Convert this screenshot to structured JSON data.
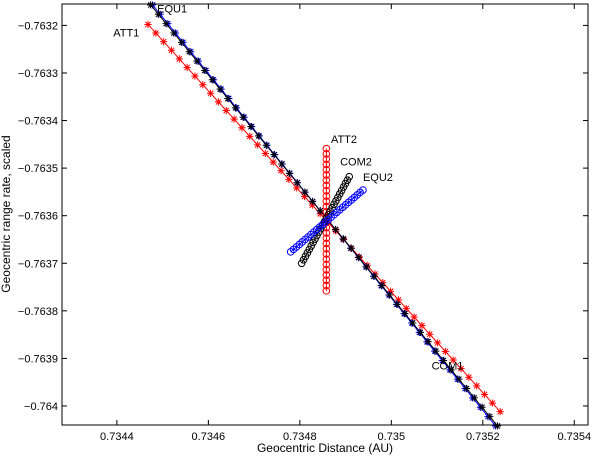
{
  "chart_data": {
    "type": "line",
    "title": "",
    "xlabel": "Geocentric Distance (AU)",
    "ylabel": "Geocentric range rate, scaled",
    "xlim": [
      0.73428,
      0.73543
    ],
    "ylim": [
      -0.76404,
      -0.763155
    ],
    "xticks": [
      0.7344,
      0.7346,
      0.7348,
      0.735,
      0.7352,
      0.7354
    ],
    "xtick_labels": [
      "0.7344",
      "0.7346",
      "0.7348",
      "0.735",
      "0.7352",
      "0.7354"
    ],
    "yticks": [
      -0.7632,
      -0.7633,
      -0.7634,
      -0.7635,
      -0.7636,
      -0.7637,
      -0.7638,
      -0.7639,
      -0.764
    ],
    "ytick_labels": [
      "−0.7632",
      "−0.7633",
      "−0.7634",
      "−0.7635",
      "−0.7636",
      "−0.7637",
      "−0.7638",
      "−0.7639",
      "−0.764"
    ],
    "grid": false,
    "series": [
      {
        "name": "ATT1",
        "color": "#ff0000",
        "marker": "star",
        "count": 46,
        "start": [
          0.734468,
          -0.763198
        ],
        "end": [
          0.735238,
          -0.764012
        ]
      },
      {
        "name": "EQU1",
        "color": "#0000ff",
        "marker": "star",
        "count": 46,
        "start": [
          0.734478,
          -0.763157
        ],
        "end": [
          0.735228,
          -0.764042
        ]
      },
      {
        "name": "COM1",
        "color": "#000000",
        "marker": "star",
        "count": 46,
        "start": [
          0.734474,
          -0.763157
        ],
        "end": [
          0.735232,
          -0.764042
        ]
      },
      {
        "name": "ATT2",
        "color": "#ff0000",
        "marker": "circle",
        "count": 28,
        "start": [
          0.734858,
          -0.763758
        ],
        "end": [
          0.734858,
          -0.763459
        ]
      },
      {
        "name": "COM2",
        "color": "#000000",
        "marker": "circle",
        "count": 26,
        "start": [
          0.734804,
          -0.7637
        ],
        "end": [
          0.734908,
          -0.763518
        ]
      },
      {
        "name": "EQU2",
        "color": "#0000ff",
        "marker": "circle",
        "count": 26,
        "start": [
          0.73478,
          -0.763676
        ],
        "end": [
          0.734938,
          -0.763546
        ]
      }
    ],
    "annotations": [
      {
        "text": "EQU1",
        "x": 0.734488,
        "y": -0.763173
      },
      {
        "text": "ATT1",
        "x": 0.734392,
        "y": -0.763223
      },
      {
        "text": "ATT2",
        "x": 0.734868,
        "y": -0.763447
      },
      {
        "text": "COM2",
        "x": 0.734888,
        "y": -0.763494
      },
      {
        "text": "EQU2",
        "x": 0.734938,
        "y": -0.763527
      },
      {
        "text": "COM1",
        "x": 0.735088,
        "y": -0.763923
      }
    ]
  }
}
